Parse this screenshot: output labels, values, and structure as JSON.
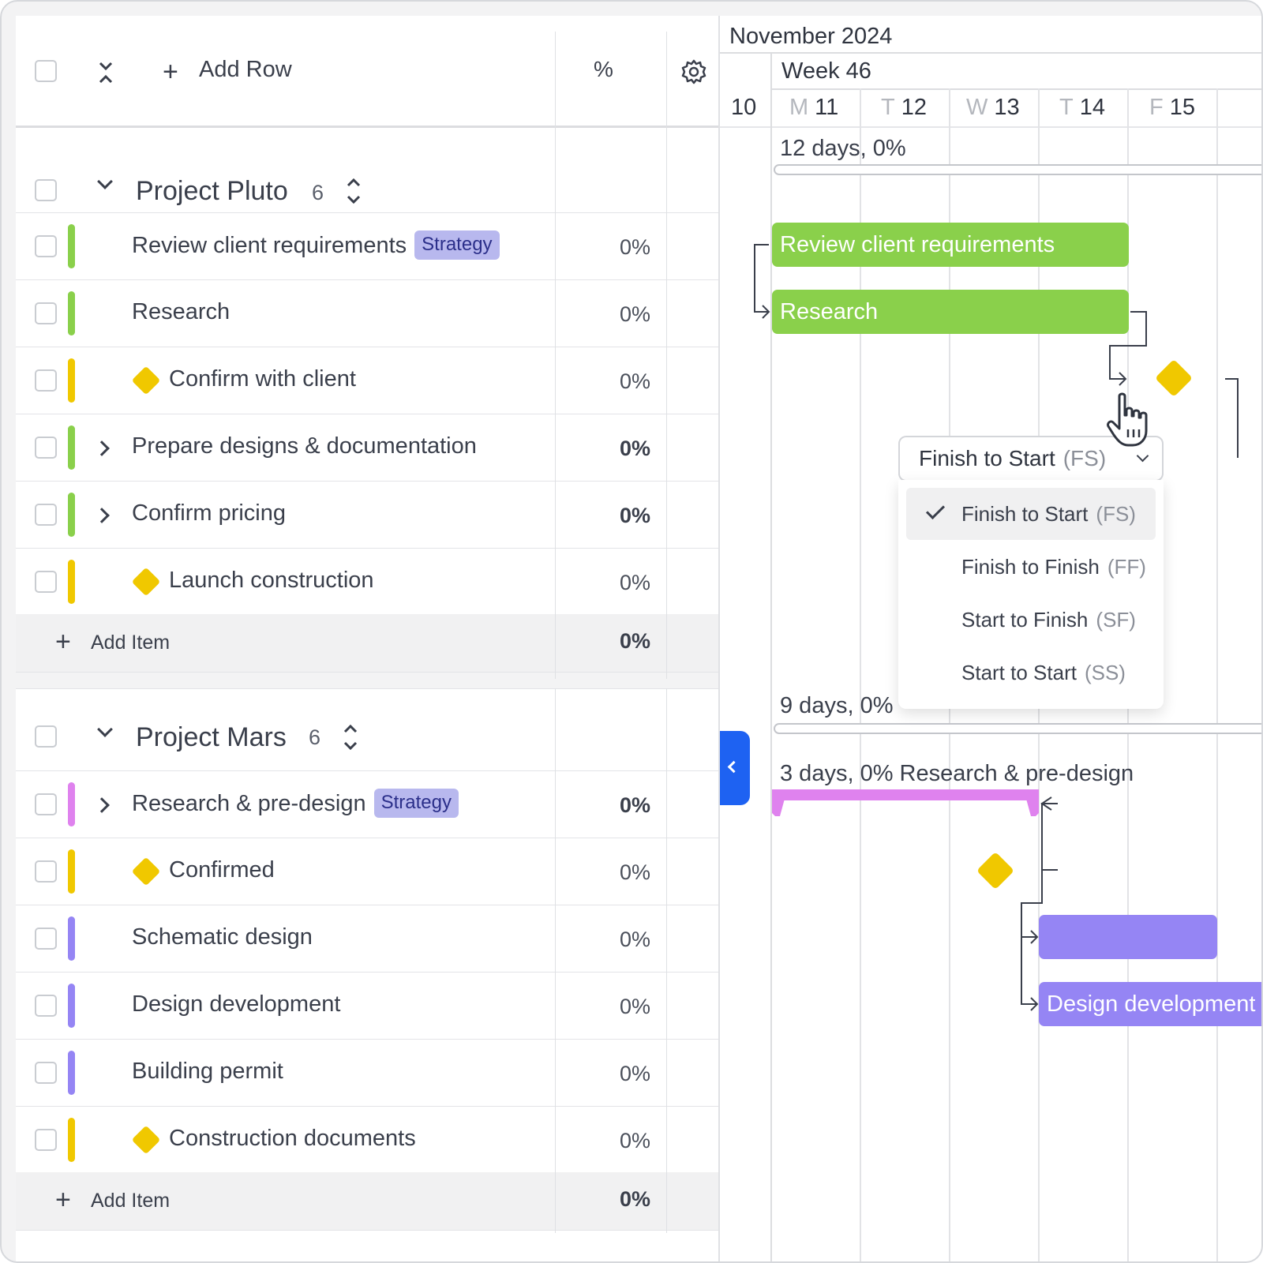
{
  "header": {
    "add_row_label": "Add Row",
    "pct_header": "%",
    "icons": [
      "checkbox-icon",
      "collapse-all-icon",
      "plus-icon",
      "gear-icon"
    ]
  },
  "groups": [
    {
      "title": "Project Pluto",
      "count": "6",
      "rows": [
        {
          "label": "Review client requirements",
          "tag": "Strategy",
          "pct": "0%",
          "color": "#8ad04b",
          "type": "task"
        },
        {
          "label": "Research",
          "pct": "0%",
          "color": "#8ad04b",
          "type": "task"
        },
        {
          "label": "Confirm with client",
          "pct": "0%",
          "color": "#f0c800",
          "type": "milestone"
        },
        {
          "label": "Prepare designs & documentation",
          "pct": "0%",
          "color": "#8ad04b",
          "type": "group"
        },
        {
          "label": "Confirm pricing",
          "pct": "0%",
          "color": "#8ad04b",
          "type": "group"
        },
        {
          "label": "Launch construction",
          "pct": "0%",
          "color": "#f0c800",
          "type": "milestone"
        }
      ],
      "add_item_label": "Add Item",
      "total_pct": "0%"
    },
    {
      "title": "Project Mars",
      "count": "6",
      "rows": [
        {
          "label": "Research & pre-design",
          "tag": "Strategy",
          "pct": "0%",
          "color": "#df82ee",
          "type": "group"
        },
        {
          "label": "Confirmed",
          "pct": "0%",
          "color": "#f0c800",
          "type": "milestone"
        },
        {
          "label": "Schematic design",
          "pct": "0%",
          "color": "#9585f4",
          "type": "task"
        },
        {
          "label": "Design development",
          "pct": "0%",
          "color": "#9585f4",
          "type": "task"
        },
        {
          "label": "Building permit",
          "pct": "0%",
          "color": "#9585f4",
          "type": "task"
        },
        {
          "label": "Construction documents",
          "pct": "0%",
          "color": "#f0c800",
          "type": "milestone"
        }
      ],
      "add_item_label": "Add Item",
      "total_pct": "0%"
    }
  ],
  "timeline": {
    "month": "November 2024",
    "week": "Week 46",
    "days": [
      {
        "weekday": "",
        "num": "10"
      },
      {
        "weekday": "M",
        "num": "11"
      },
      {
        "weekday": "T",
        "num": "12"
      },
      {
        "weekday": "W",
        "num": "13"
      },
      {
        "weekday": "T",
        "num": "14"
      },
      {
        "weekday": "F",
        "num": "15"
      }
    ],
    "pluto_summary_days": "12 days,",
    "pluto_summary_pct": "0%",
    "bar_review": "Review client requirements",
    "bar_research": "Research",
    "mars_summary_days": "9 days,",
    "mars_summary_pct": "0%",
    "research_predesign_days": "3 days,",
    "research_predesign_pct": "0%",
    "research_predesign_label": "Research & pre-design",
    "bar_schematic": "",
    "bar_design_dev": "Design development"
  },
  "dependency_dropdown": {
    "selected_label": "Finish to Start",
    "selected_abbr": "(FS)",
    "options": [
      {
        "label": "Finish to Start",
        "abbr": "(FS)",
        "selected": true
      },
      {
        "label": "Finish to Finish",
        "abbr": "(FF)",
        "selected": false
      },
      {
        "label": "Start to Finish",
        "abbr": "(SF)",
        "selected": false
      },
      {
        "label": "Start to Start",
        "abbr": "(SS)",
        "selected": false
      }
    ]
  },
  "colors": {
    "accent": "#1e62f2",
    "green": "#8ad04b",
    "purple": "#9585f4",
    "pink": "#df82ee",
    "milestone": "#f0c800",
    "tag_bg": "#b8b8ee"
  }
}
